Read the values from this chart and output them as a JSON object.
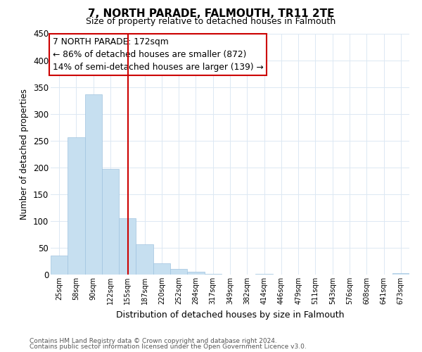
{
  "title": "7, NORTH PARADE, FALMOUTH, TR11 2TE",
  "subtitle": "Size of property relative to detached houses in Falmouth",
  "xlabel": "Distribution of detached houses by size in Falmouth",
  "ylabel": "Number of detached properties",
  "bin_labels": [
    "25sqm",
    "58sqm",
    "90sqm",
    "122sqm",
    "155sqm",
    "187sqm",
    "220sqm",
    "252sqm",
    "284sqm",
    "317sqm",
    "349sqm",
    "382sqm",
    "414sqm",
    "446sqm",
    "479sqm",
    "511sqm",
    "543sqm",
    "576sqm",
    "608sqm",
    "641sqm",
    "673sqm"
  ],
  "bar_heights": [
    36,
    256,
    336,
    197,
    105,
    57,
    21,
    11,
    5,
    1,
    0,
    0,
    1,
    0,
    0,
    0,
    0,
    0,
    0,
    0,
    2
  ],
  "bar_color": "#c6dff0",
  "bar_edge_color": "#a0c4e0",
  "vline_color": "#cc0000",
  "ylim": [
    0,
    450
  ],
  "yticks": [
    0,
    50,
    100,
    150,
    200,
    250,
    300,
    350,
    400,
    450
  ],
  "annotation_title": "7 NORTH PARADE: 172sqm",
  "annotation_line1": "← 86% of detached houses are smaller (872)",
  "annotation_line2": "14% of semi-detached houses are larger (139) →",
  "annotation_box_color": "#ffffff",
  "annotation_box_edge": "#cc0000",
  "footer1": "Contains HM Land Registry data © Crown copyright and database right 2024.",
  "footer2": "Contains public sector information licensed under the Open Government Licence v3.0.",
  "background_color": "#ffffff",
  "grid_color": "#dce8f3"
}
